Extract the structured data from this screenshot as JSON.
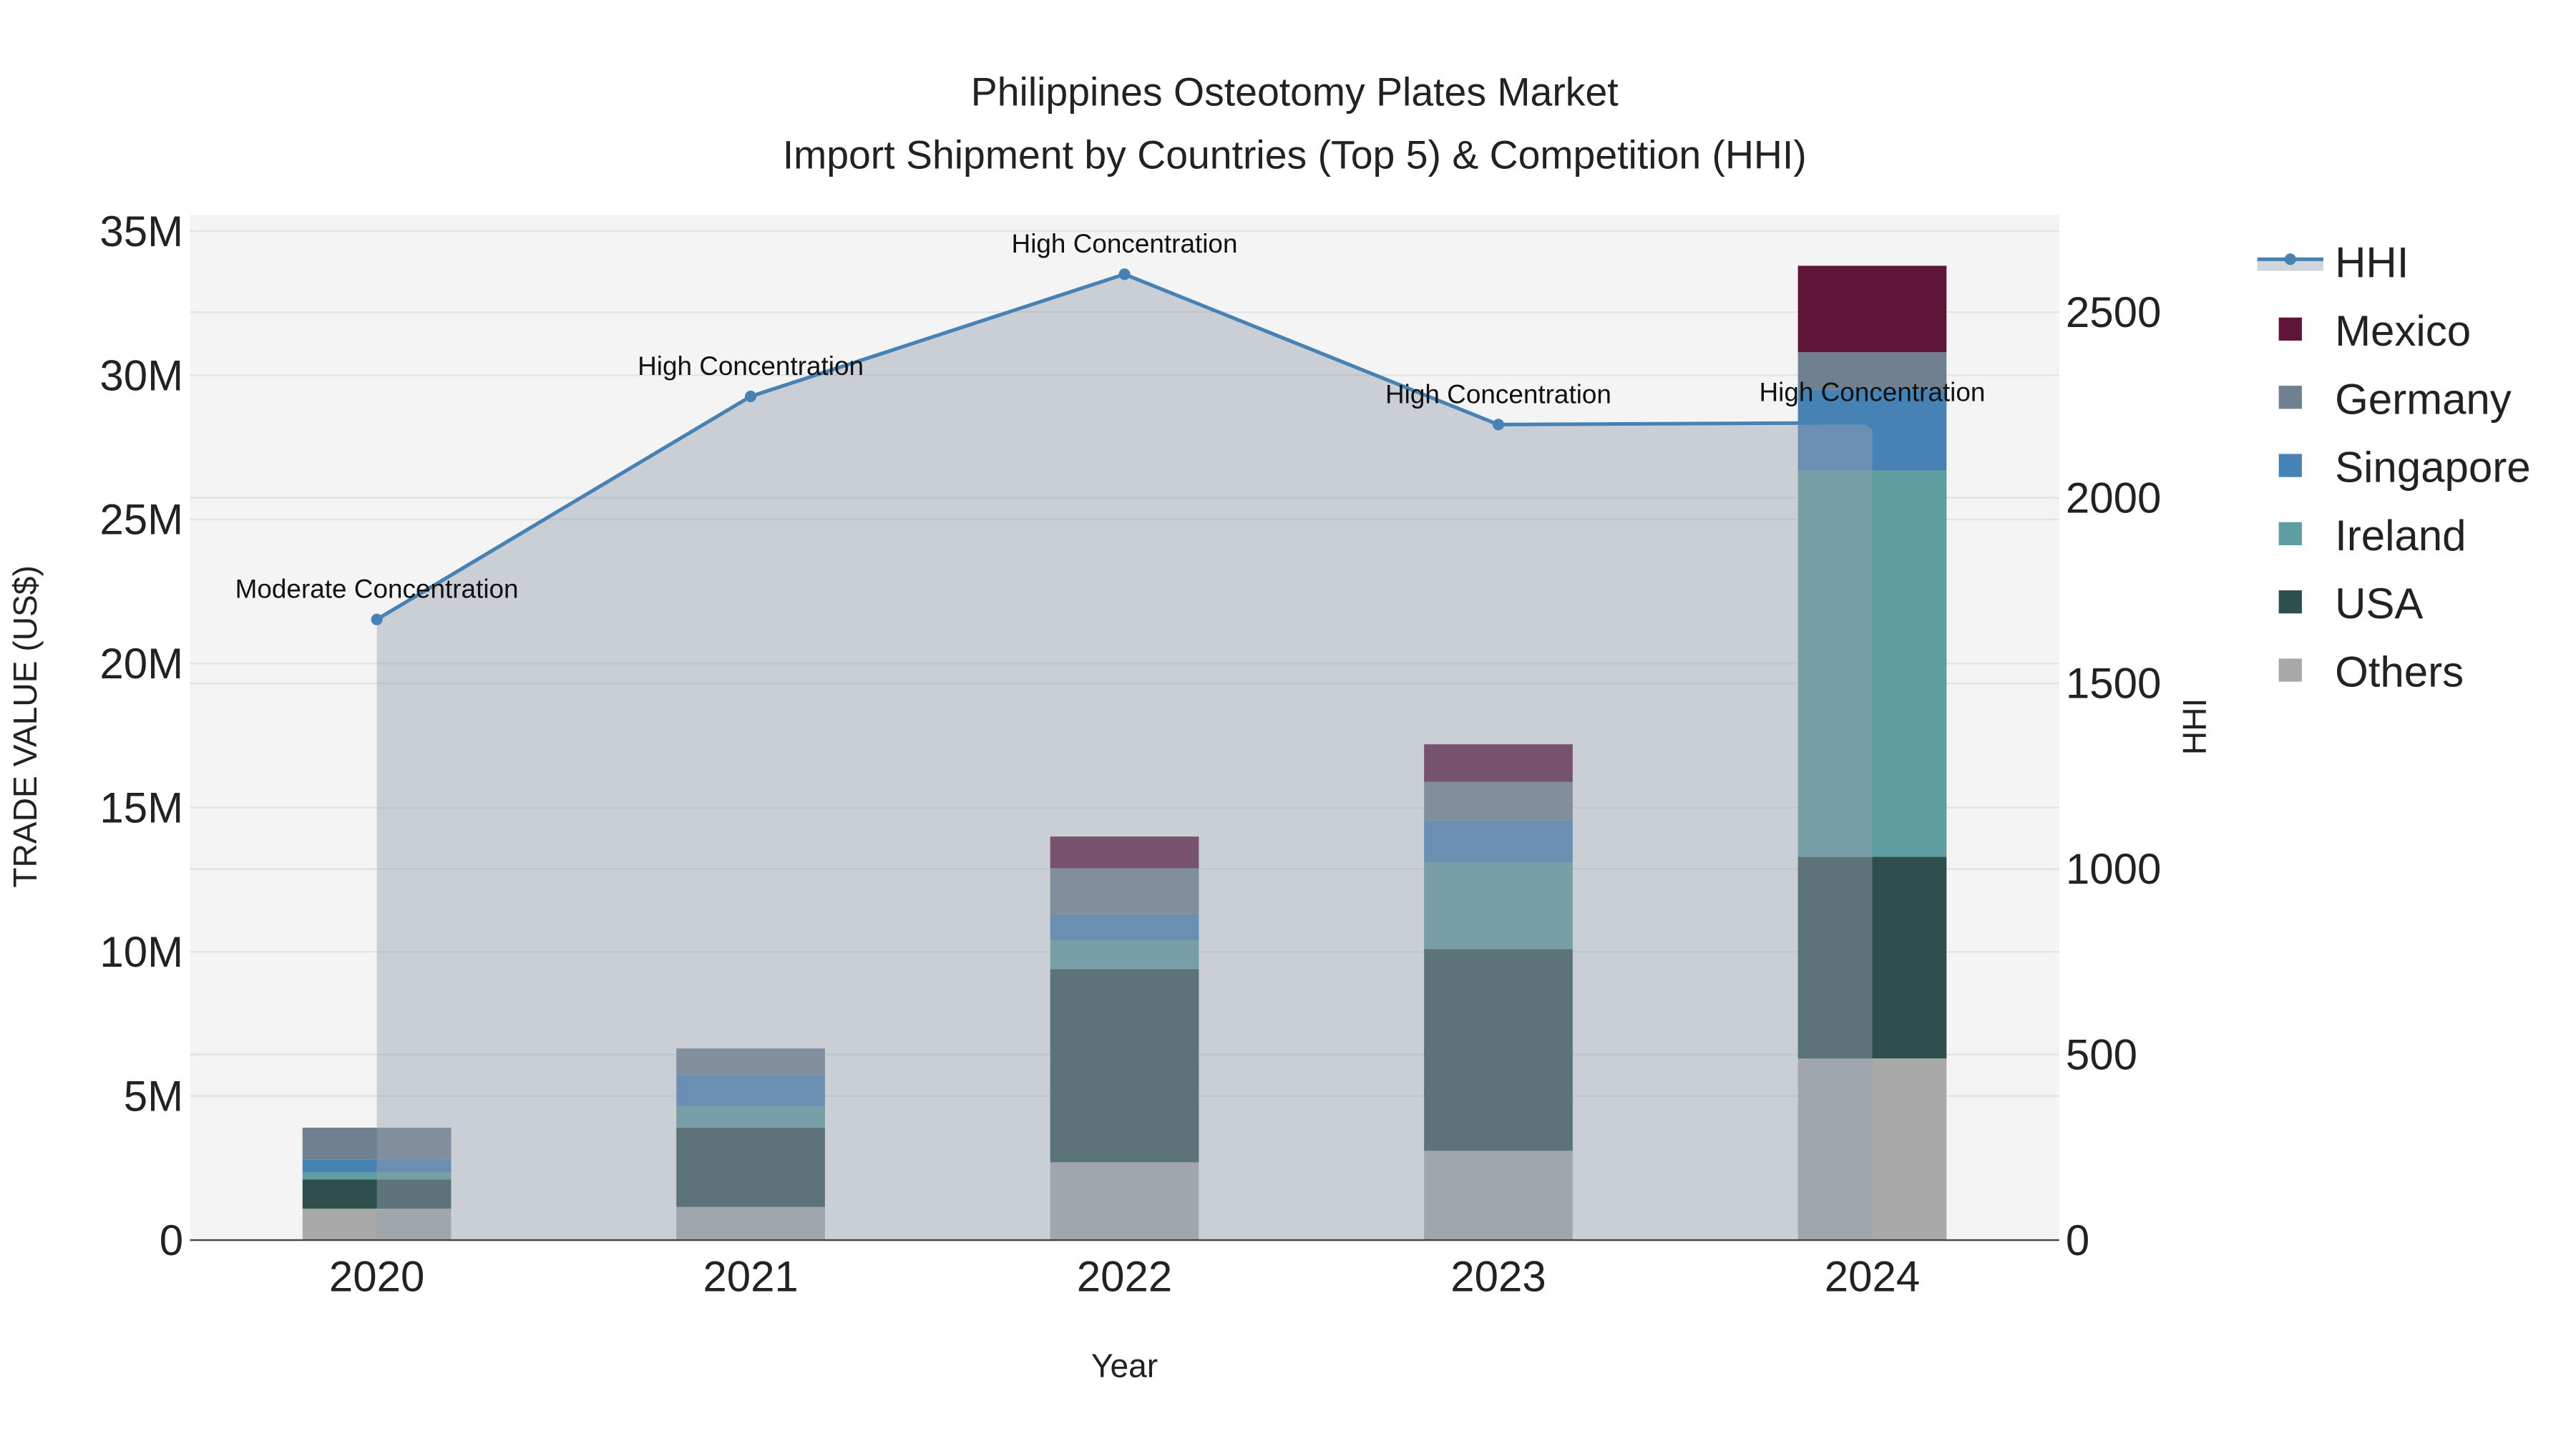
{
  "chart_data": {
    "type": "bar",
    "stacked": true,
    "title": "Philippines Osteotomy Plates Market",
    "subtitle": "Import Shipment by Countries (Top 5) & Competition (HHI)",
    "xlabel": "Year",
    "ylabel": "TRADE VALUE (US$)",
    "y2label": "HHI",
    "categories": [
      "2020",
      "2021",
      "2022",
      "2023",
      "2024"
    ],
    "ylim": [
      0,
      35000000
    ],
    "y2lim": [
      0,
      2750
    ],
    "yticks": [
      {
        "v": 0,
        "label": "0"
      },
      {
        "v": 5000000,
        "label": "5M"
      },
      {
        "v": 10000000,
        "label": "10M"
      },
      {
        "v": 15000000,
        "label": "15M"
      },
      {
        "v": 20000000,
        "label": "20M"
      },
      {
        "v": 25000000,
        "label": "25M"
      },
      {
        "v": 30000000,
        "label": "30M"
      },
      {
        "v": 35000000,
        "label": "35M"
      }
    ],
    "y2ticks": [
      {
        "v": 0,
        "label": "0"
      },
      {
        "v": 500,
        "label": "500"
      },
      {
        "v": 1000,
        "label": "1000"
      },
      {
        "v": 1500,
        "label": "1500"
      },
      {
        "v": 2000,
        "label": "2000"
      },
      {
        "v": 2500,
        "label": "2500"
      }
    ],
    "series": [
      {
        "name": "Others",
        "color": "#a9a9a9",
        "values": [
          1090000,
          1150000,
          2700000,
          3100000,
          6300000
        ]
      },
      {
        "name": "USA",
        "color": "#2f4f4f",
        "values": [
          1010000,
          2750000,
          6700000,
          7000000,
          7000000
        ]
      },
      {
        "name": "Ireland",
        "color": "#5f9ea0",
        "values": [
          250000,
          740000,
          1000000,
          3000000,
          13400000
        ]
      },
      {
        "name": "Singapore",
        "color": "#4682b4",
        "values": [
          450000,
          1090000,
          900000,
          1450000,
          2800000
        ]
      },
      {
        "name": "Germany",
        "color": "#708090",
        "values": [
          1100000,
          920000,
          1600000,
          1350000,
          1300000
        ]
      },
      {
        "name": "Mexico",
        "color": "#5e1537",
        "values": [
          0,
          0,
          1100000,
          1300000,
          3000000
        ]
      }
    ],
    "hhi": {
      "name": "HHI",
      "color": "#4682b4",
      "values": [
        1672,
        2273,
        2602,
        2197,
        2202
      ],
      "annotations": [
        "Moderate Concentration",
        "High Concentration",
        "High Concentration",
        "High Concentration",
        "High Concentration"
      ]
    },
    "legend": {
      "placement": "right",
      "order": [
        "HHI",
        "Mexico",
        "Germany",
        "Singapore",
        "Ireland",
        "USA",
        "Others"
      ]
    },
    "grid": true
  }
}
